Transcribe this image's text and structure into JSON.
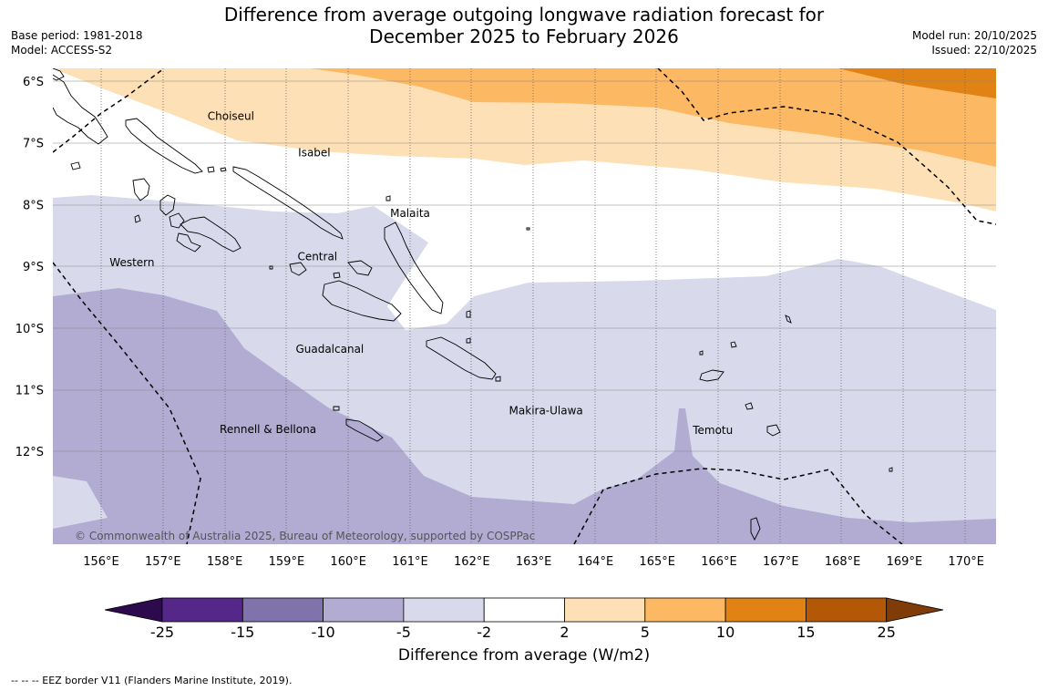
{
  "title_line1": "Difference from average outgoing longwave radiation forecast for",
  "title_line2": "December 2025 to February 2026",
  "base_period": "Base period: 1981-2018",
  "model": "Model: ACCESS-S2",
  "model_run": "Model run: 20/10/2025",
  "issued": "Issued: 22/10/2025",
  "copyright": "© Commonwealth of Australia 2025, Bureau of Meteorology, supported by COSPPac",
  "eez_note": "--  --  -- EEZ border V11 (Flanders Marine Institute, 2019).",
  "colorbar": {
    "title": "Difference from average (W/m2)",
    "labels": [
      "-25",
      "-15",
      "-10",
      "-5",
      "-2",
      "2",
      "5",
      "10",
      "15",
      "25"
    ],
    "colors": [
      "#2d0a4e",
      "#542788",
      "#8073ac",
      "#b2abd2",
      "#d8daeb",
      "#ffffff",
      "#fee0b6",
      "#fdb863",
      "#e08214",
      "#b35806",
      "#7f3b08"
    ]
  },
  "map": {
    "lon_labels": [
      "156°E",
      "157°E",
      "158°E",
      "159°E",
      "160°E",
      "161°E",
      "162°E",
      "163°E",
      "164°E",
      "165°E",
      "166°E",
      "167°E",
      "168°E",
      "169°E",
      "170°E"
    ],
    "lat_labels": [
      "6°S",
      "7°S",
      "8°S",
      "9°S",
      "10°S",
      "11°S",
      "12°S"
    ],
    "lon_range": [
      155.2,
      170.5
    ],
    "lat_range": [
      -13.5,
      -5.8
    ],
    "provinces": [
      {
        "name": "Choiseul",
        "lon": 158.1,
        "lat": -6.63
      },
      {
        "name": "Isabel",
        "lon": 159.45,
        "lat": -7.22
      },
      {
        "name": "Malaita",
        "lon": 161.0,
        "lat": -8.2
      },
      {
        "name": "Western",
        "lon": 156.5,
        "lat": -9.0
      },
      {
        "name": "Central",
        "lon": 159.5,
        "lat": -8.9
      },
      {
        "name": "Guadalcanal",
        "lon": 159.7,
        "lat": -10.4
      },
      {
        "name": "Rennell & Bellona",
        "lon": 158.7,
        "lat": -11.7
      },
      {
        "name": "Makira-Ulawa",
        "lon": 163.2,
        "lat": -11.4
      },
      {
        "name": "Temotu",
        "lon": 165.9,
        "lat": -11.72
      }
    ]
  }
}
